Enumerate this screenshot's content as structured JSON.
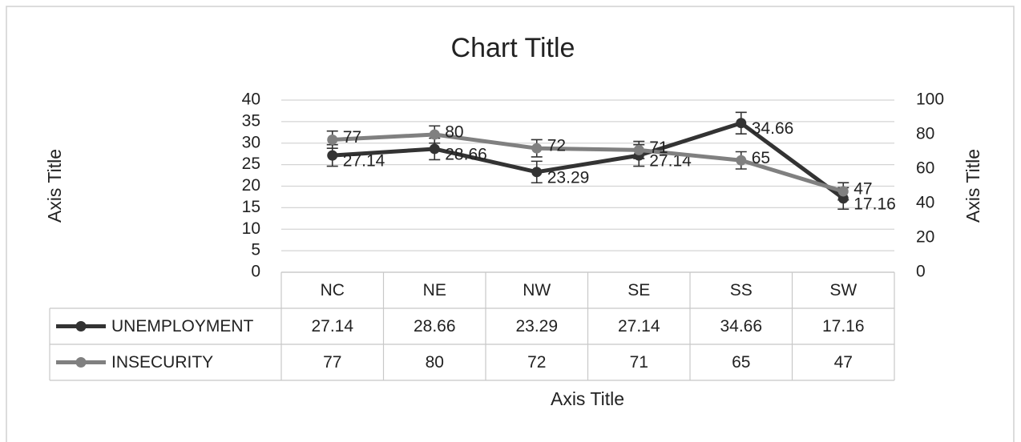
{
  "chart_data": {
    "type": "line",
    "title": "Chart Title",
    "y_label": "Axis Title",
    "y2_label": "Axis Title",
    "x_label": "Axis Title",
    "categories": [
      "NC",
      "NE",
      "NW",
      "SE",
      "SS",
      "SW"
    ],
    "series": [
      {
        "name": "UNEMPLOYMENT",
        "color": "#333333",
        "values": [
          27.14,
          28.66,
          23.29,
          27.14,
          34.66,
          17.16
        ],
        "errors": [
          2.5,
          2.5,
          2.5,
          2.5,
          2.5,
          2.5
        ]
      },
      {
        "name": "INSECURITY",
        "color": "#808080",
        "axis": "y2",
        "values": [
          77,
          80,
          72,
          71,
          65,
          47
        ],
        "errors": [
          5,
          5,
          5,
          5,
          5,
          5
        ]
      }
    ],
    "ylim": [
      0,
      40
    ],
    "yticks": [
      0,
      5,
      10,
      15,
      20,
      25,
      30,
      35,
      40
    ],
    "y2lim": [
      0,
      100
    ],
    "y2ticks": [
      0,
      20,
      40,
      60,
      80,
      100
    ],
    "grid": true,
    "data_table": true
  }
}
